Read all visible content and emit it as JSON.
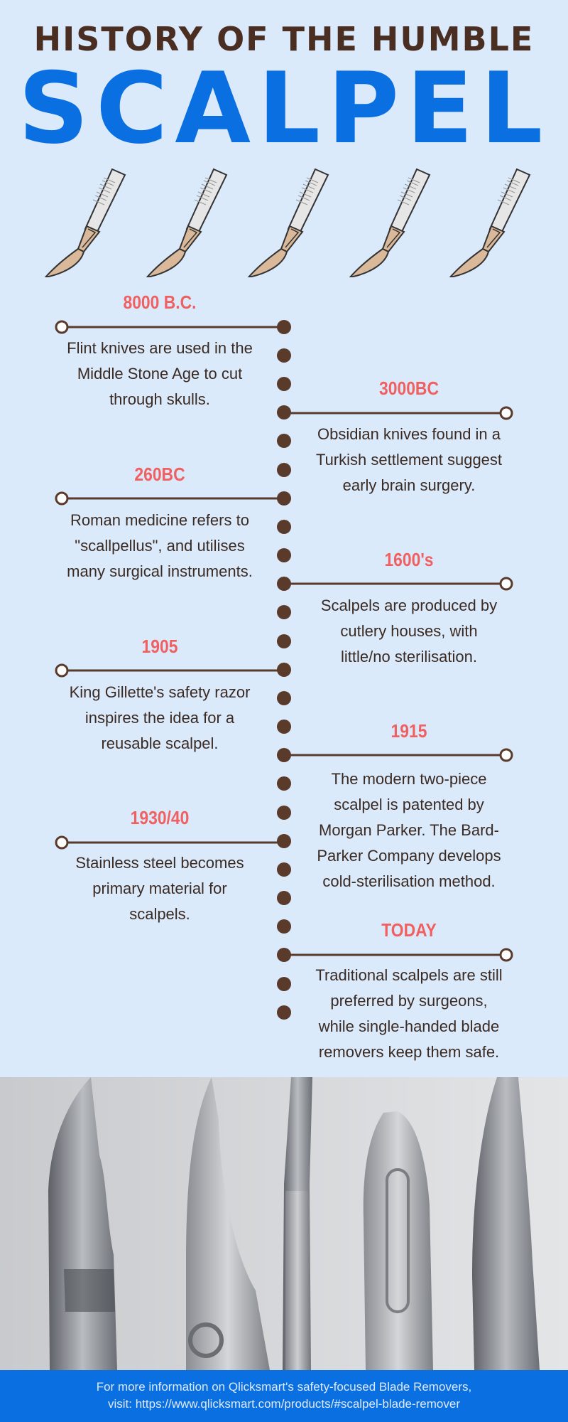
{
  "header": {
    "title_line1": "HISTORY OF THE HUMBLE",
    "title_line2": "SCALPEL"
  },
  "colors": {
    "background": "#dbeafb",
    "title_dark": "#4a2e22",
    "title_blue": "#0a6fe0",
    "date_red": "#f06060",
    "timeline_brown": "#5a3a2a",
    "footer_blue": "#0a6fe0"
  },
  "icons": [
    "scalpel-icon",
    "scalpel-icon",
    "scalpel-icon",
    "scalpel-icon",
    "scalpel-icon"
  ],
  "timeline": {
    "left": [
      {
        "date": "8000 B.C.",
        "text": [
          "Flint knives are used in the",
          "Middle Stone Age to cut",
          "through skulls."
        ]
      },
      {
        "date": "260BC",
        "text": [
          "Roman medicine refers to",
          "\"scallpellus\", and utilises",
          "many surgical instruments."
        ]
      },
      {
        "date": "1905",
        "text": [
          "King Gillette's safety razor",
          "inspires the idea for a",
          "reusable scalpel."
        ]
      },
      {
        "date": "1930/40",
        "text": [
          "Stainless steel becomes",
          "primary material for",
          "scalpels."
        ]
      }
    ],
    "right": [
      {
        "date": "3000BC",
        "text": [
          "Obsidian knives found in a",
          "Turkish settlement suggest",
          "early brain surgery."
        ]
      },
      {
        "date": "1600's",
        "text": [
          "Scalpels are produced by",
          "cutlery houses, with",
          "little/no sterilisation."
        ]
      },
      {
        "date": "1915",
        "text": [
          "The modern two-piece",
          "scalpel is patented by",
          "Morgan Parker. The Bard-",
          "Parker Company develops",
          "cold-sterilisation method."
        ]
      },
      {
        "date": "TODAY",
        "text": [
          "Traditional scalpels are still",
          "preferred by surgeons,",
          "while single-handed blade",
          "removers keep them safe."
        ]
      }
    ]
  },
  "footer": {
    "line1": "For more information on Qlicksmart's safety-focused Blade Removers,",
    "line2": "visit: https://www.qlicksmart.com/products/#scalpel-blade-remover"
  }
}
